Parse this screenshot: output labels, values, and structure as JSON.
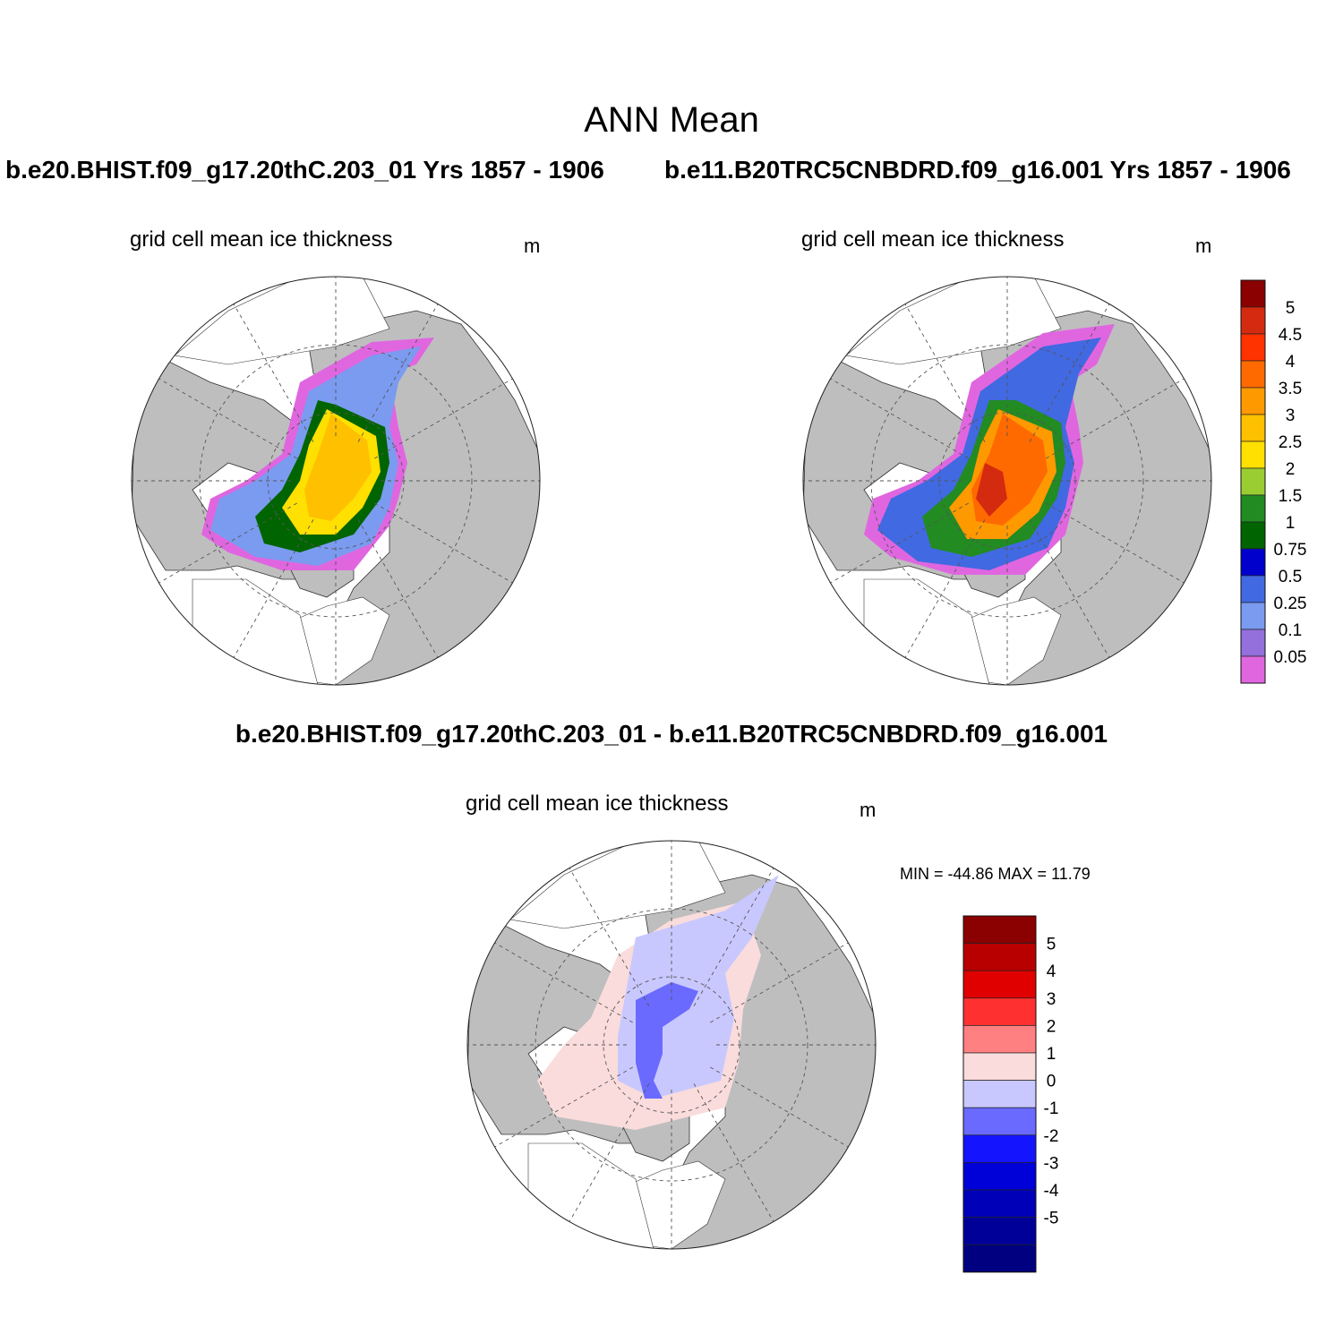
{
  "title": "ANN Mean",
  "panels": [
    {
      "case_title": "b.e20.BHIST.f09_g17.20thC.203_01  Yrs 1857 - 1906",
      "variable": "grid cell mean ice thickness",
      "units": "m"
    },
    {
      "case_title": "b.e11.B20TRC5CNBDRD.f09_g16.001  Yrs 1857 - 1906",
      "variable": "grid cell mean ice thickness",
      "units": "m"
    },
    {
      "case_title": "b.e20.BHIST.f09_g17.20thC.203_01 - b.e11.B20TRC5CNBDRD.f09_g16.001",
      "variable": "grid cell mean ice thickness",
      "units": "m",
      "stats": "MIN = -44.86 MAX =  11.79"
    }
  ],
  "colors": {
    "land": "#bebebe",
    "ocean": "#ffffff",
    "thickness": [
      "#e066e0",
      "#9370db",
      "#7b9bf0",
      "#4169e1",
      "#0000cd",
      "#006400",
      "#228b22",
      "#9acd32",
      "#ffe000",
      "#ffc000",
      "#ff9900",
      "#ff6a00",
      "#ff3300",
      "#d42a10",
      "#8b0000"
    ],
    "difference": [
      "#000080",
      "#000099",
      "#0000b8",
      "#0000d8",
      "#1414ff",
      "#6a6aff",
      "#c8c8ff",
      "#fadcdc",
      "#ff8080",
      "#ff3030",
      "#e00000",
      "#b80000",
      "#8b0000"
    ]
  },
  "legend_thickness": [
    "5",
    "4.5",
    "4",
    "3.5",
    "3",
    "2.5",
    "2",
    "1.5",
    "1",
    "0.75",
    "0.5",
    "0.25",
    "0.1",
    "0.05"
  ],
  "legend_difference": [
    "5",
    "4",
    "3",
    "2",
    "1",
    "0",
    "-1",
    "-2",
    "-3",
    "-4",
    "-5"
  ]
}
